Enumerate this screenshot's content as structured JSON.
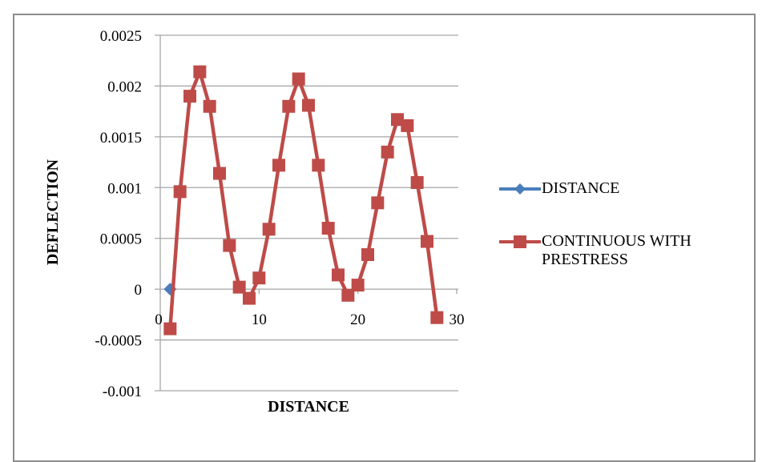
{
  "chart_data": {
    "type": "line",
    "title": "",
    "xlabel": "DISTANCE",
    "ylabel": "DEFLECTION",
    "xlim": [
      0,
      30
    ],
    "ylim": [
      -0.001,
      0.0025
    ],
    "x_ticks": [
      0,
      10,
      20,
      30
    ],
    "x_tick_labels": [
      "0",
      "10",
      "20",
      "30"
    ],
    "y_ticks": [
      -0.001,
      -0.0005,
      0,
      0.0005,
      0.001,
      0.0015,
      0.002,
      0.0025
    ],
    "y_tick_labels": [
      "-0.001",
      "-0.0005",
      "0",
      "0.0005",
      "0.001",
      "0.0015",
      "0.002",
      "0.0025"
    ],
    "grid": "horizontal",
    "legend_position": "right",
    "series": [
      {
        "name": "DISTANCE",
        "color": "#4A7EBB",
        "marker": "diamond",
        "x": [
          1
        ],
        "values": [
          0
        ]
      },
      {
        "name": "CONTINUOUS WITH PRESTRESS",
        "color": "#BE4B48",
        "marker": "square",
        "x": [
          1,
          2,
          3,
          4,
          5,
          6,
          7,
          8,
          9,
          10,
          11,
          12,
          13,
          14,
          15,
          16,
          17,
          18,
          19,
          20,
          21,
          22,
          23,
          24,
          25,
          26,
          27,
          28
        ],
        "values": [
          -0.00039,
          0.00096,
          0.0019,
          0.00214,
          0.0018,
          0.00114,
          0.00043,
          2e-05,
          -9e-05,
          0.00011,
          0.00059,
          0.00122,
          0.0018,
          0.00207,
          0.00181,
          0.00122,
          0.0006,
          0.00014,
          -6e-05,
          4e-05,
          0.00034,
          0.00085,
          0.00135,
          0.00167,
          0.00161,
          0.00105,
          0.00047,
          -0.00028
        ]
      }
    ]
  },
  "legend": {
    "items": [
      {
        "label": "DISTANCE",
        "color": "#4A7EBB",
        "marker": "diamond"
      },
      {
        "label_line1": "CONTINUOUS WITH",
        "label_line2": "PRESTRESS",
        "color": "#BE4B48",
        "marker": "square"
      }
    ]
  },
  "axes": {
    "x_title": "DISTANCE",
    "y_title": "DEFLECTION"
  },
  "colors": {
    "gridline": "#a6a6a6",
    "frame": "#8c8c8c",
    "series_distance": "#4A7EBB",
    "series_prestress": "#BE4B48"
  }
}
